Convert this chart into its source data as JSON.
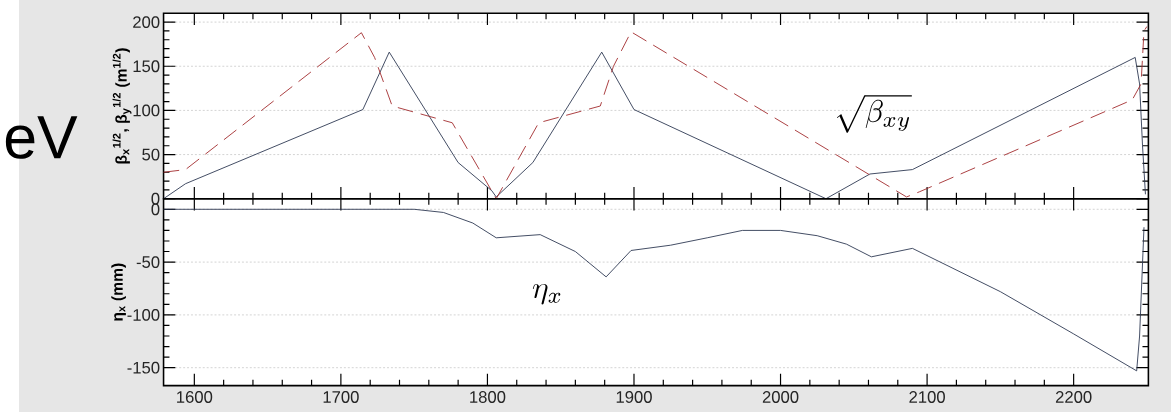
{
  "chart_data": [
    {
      "type": "line",
      "ylabel": "β$_{x}$$^{1/2}$, β$_{y}$$^{1/2}$ (m$^{1/2}$)",
      "xlim": [
        1579,
        2251
      ],
      "ylim": [
        0,
        210
      ],
      "xticks": [
        1600,
        1700,
        1800,
        1900,
        2000,
        2100,
        2200
      ],
      "yticks": [
        0,
        50,
        100,
        150,
        200
      ],
      "grid": "y",
      "tick_labels": "y",
      "series": [
        {
          "color": "#2a3550",
          "line_style": "solid",
          "x": [
            1579,
            1594,
            1715,
            1733,
            1780,
            1803,
            1806,
            1831,
            1878,
            1900,
            2031,
            2061,
            2090,
            2242,
            2245,
            2247,
            2249
          ],
          "values": [
            0,
            17,
            101,
            166,
            41,
            9,
            2,
            41,
            166,
            101,
            0,
            28,
            33,
            160,
            130,
            60,
            5
          ]
        },
        {
          "color": "#a0282a",
          "line_style": "dashed",
          "x": [
            1579,
            1594,
            1714,
            1723,
            1735,
            1776,
            1806,
            1835,
            1877,
            1886,
            1898,
            2086,
            2095,
            2240,
            2246,
            2248,
            2250
          ],
          "values": [
            30,
            33,
            188,
            160,
            105,
            86,
            0,
            86,
            105,
            150,
            189,
            2,
            8,
            112,
            130,
            190,
            195
          ]
        }
      ],
      "annotations": [
        "eV",
        "\\sqrt{\\beta_{xy}}"
      ]
    },
    {
      "type": "line",
      "ylabel": "η$_{x}$ (mm)",
      "xlim": [
        1579,
        2251
      ],
      "ylim": [
        -167,
        10
      ],
      "xticks": [
        1600,
        1700,
        1800,
        1900,
        2000,
        2100,
        2200
      ],
      "yticks": [
        0,
        -50,
        -100,
        -150
      ],
      "grid": "y",
      "series": [
        {
          "color": "#2a3550",
          "line_style": "solid",
          "x": [
            1579,
            1750,
            1770,
            1790,
            1806,
            1836,
            1860,
            1881,
            1898,
            1925,
            1950,
            1974,
            2000,
            2025,
            2045,
            2062,
            2090,
            2150,
            2200,
            2243,
            2245,
            2248
          ],
          "values": [
            0,
            0,
            -3,
            -13,
            -27,
            -24,
            -40,
            -64,
            -39,
            -34,
            -27,
            -20,
            -20,
            -25,
            -33,
            -45,
            -37,
            -78,
            -118,
            -153,
            -120,
            -17
          ]
        }
      ],
      "annotations": [
        "\\eta_x"
      ]
    }
  ]
}
